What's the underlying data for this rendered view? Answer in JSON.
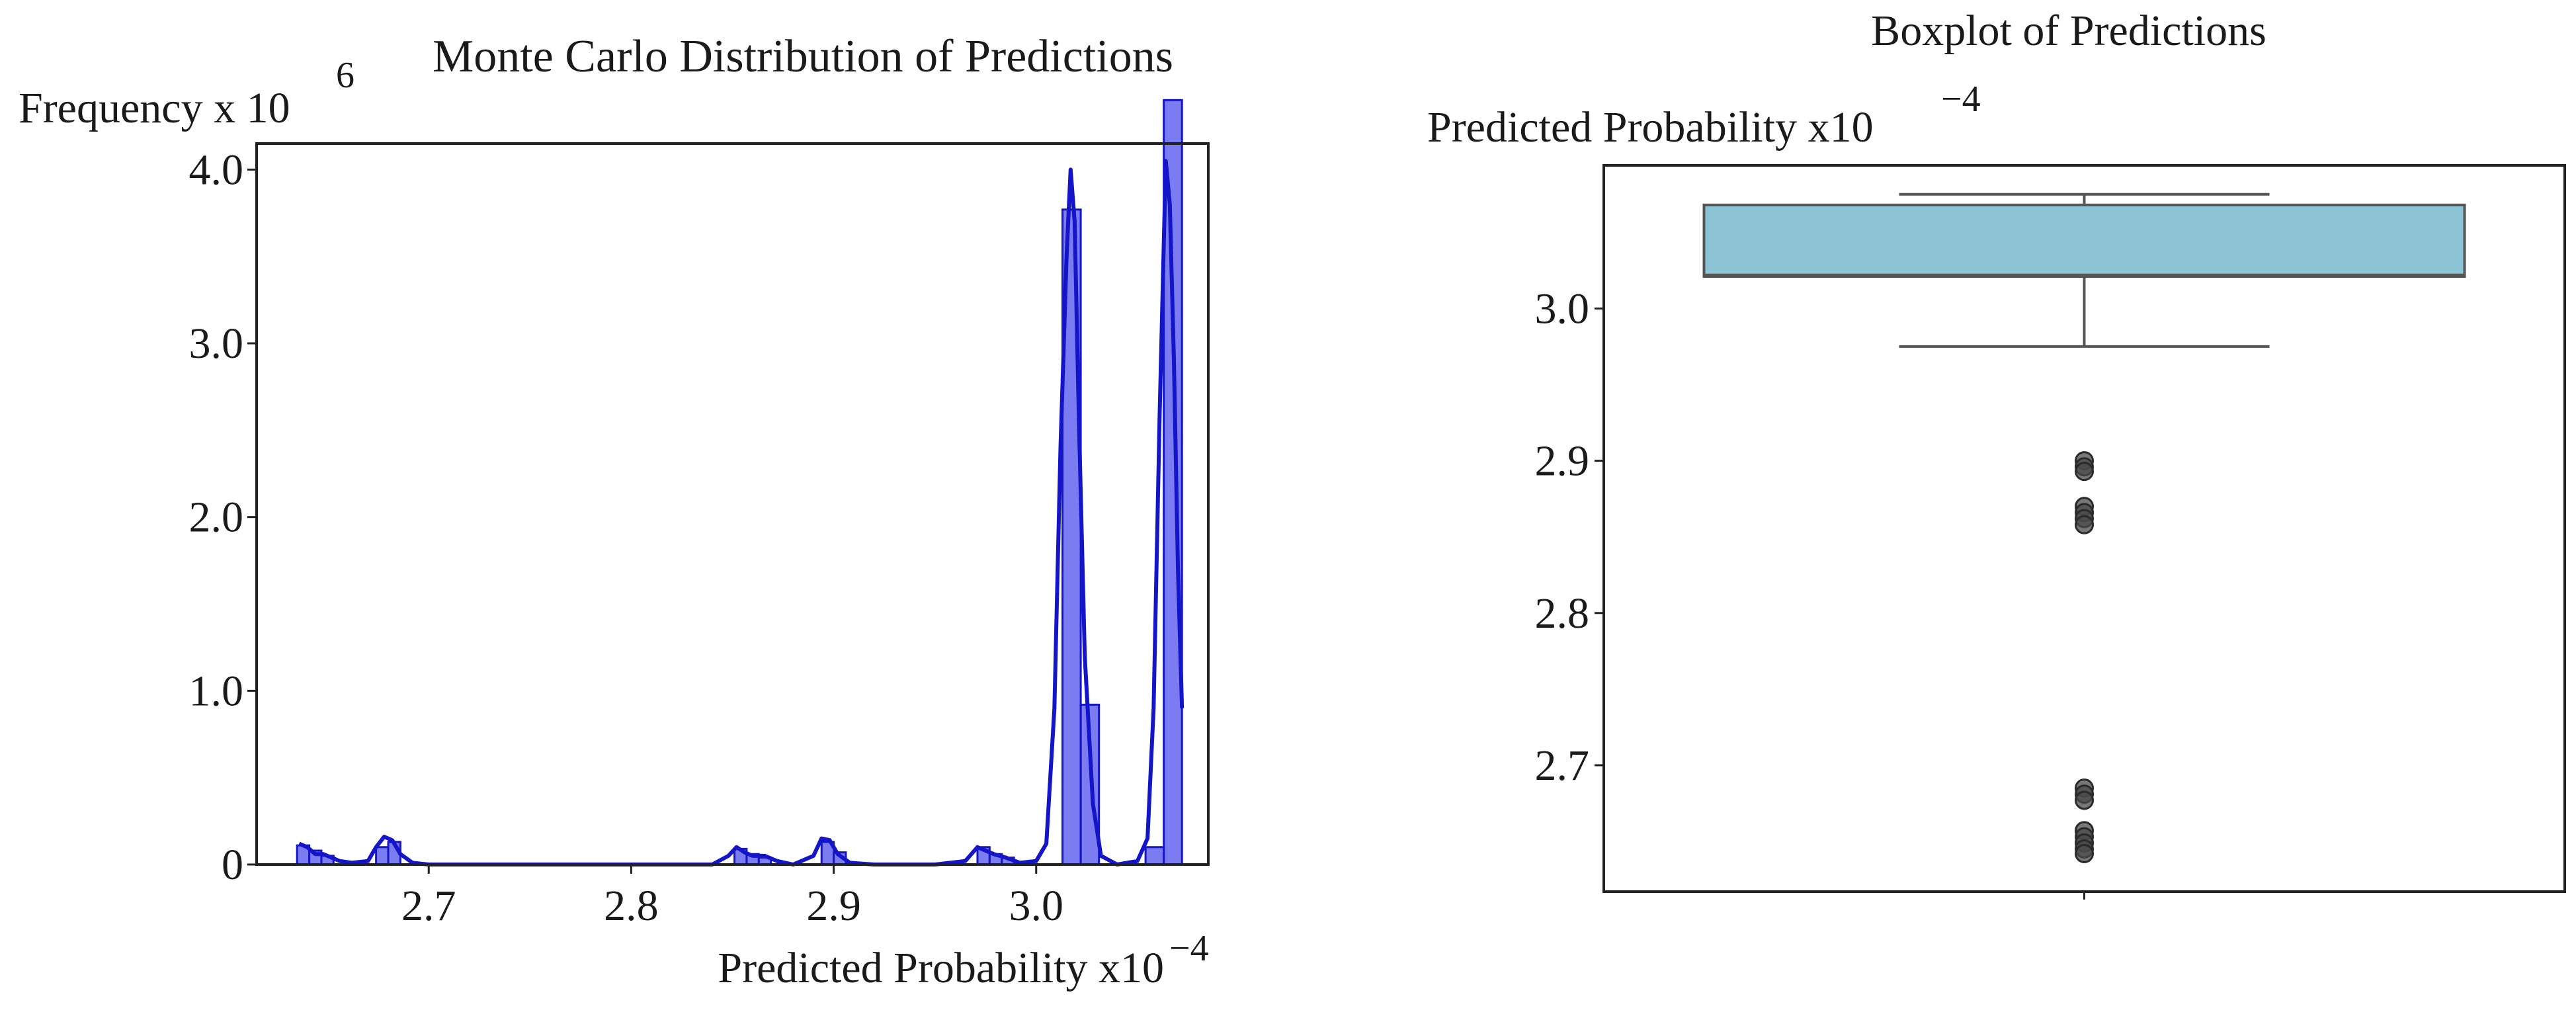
{
  "chart_data": [
    {
      "type": "bar",
      "title": "Monte Carlo Distribution of Predictions",
      "xlabel": "Predicted Probability x10",
      "xlabel_exponent": "−4",
      "ylabel": "Frequency x 10",
      "ylabel_exponent": "6",
      "xlim": [
        2.615,
        3.085
      ],
      "ylim": [
        0,
        4.15
      ],
      "x_ticks": [
        2.7,
        2.8,
        2.9,
        3.0
      ],
      "x_tick_labels": [
        "2.7",
        "2.8",
        "2.9",
        "3.0"
      ],
      "y_ticks": [
        0,
        1.0,
        2.0,
        3.0,
        4.0
      ],
      "y_tick_labels": [
        "0",
        "1.0",
        "2.0",
        "3.0",
        "4.0"
      ],
      "grid": false,
      "bar_color": "#6464f0",
      "line_color": "#1414c8",
      "bars": [
        {
          "x": 2.635,
          "width": 0.006,
          "value": 0.11
        },
        {
          "x": 2.641,
          "width": 0.006,
          "value": 0.08
        },
        {
          "x": 2.647,
          "width": 0.006,
          "value": 0.05
        },
        {
          "x": 2.674,
          "width": 0.006,
          "value": 0.1
        },
        {
          "x": 2.68,
          "width": 0.006,
          "value": 0.13
        },
        {
          "x": 2.851,
          "width": 0.006,
          "value": 0.09
        },
        {
          "x": 2.857,
          "width": 0.006,
          "value": 0.06
        },
        {
          "x": 2.863,
          "width": 0.006,
          "value": 0.04
        },
        {
          "x": 2.894,
          "width": 0.006,
          "value": 0.13
        },
        {
          "x": 2.9,
          "width": 0.006,
          "value": 0.07
        },
        {
          "x": 2.971,
          "width": 0.006,
          "value": 0.1
        },
        {
          "x": 2.977,
          "width": 0.006,
          "value": 0.06
        },
        {
          "x": 2.983,
          "width": 0.006,
          "value": 0.04
        },
        {
          "x": 3.013,
          "width": 0.009,
          "value": 3.77
        },
        {
          "x": 3.022,
          "width": 0.009,
          "value": 0.92
        },
        {
          "x": 3.054,
          "width": 0.009,
          "value": 0.1
        },
        {
          "x": 3.063,
          "width": 0.009,
          "value": 4.4
        }
      ],
      "kde": {
        "x": [
          2.636,
          2.64,
          2.644,
          2.648,
          2.652,
          2.656,
          2.662,
          2.67,
          2.674,
          2.678,
          2.682,
          2.686,
          2.692,
          2.7,
          2.75,
          2.8,
          2.84,
          2.848,
          2.852,
          2.856,
          2.86,
          2.866,
          2.872,
          2.88,
          2.89,
          2.894,
          2.898,
          2.902,
          2.908,
          2.92,
          2.95,
          2.965,
          2.971,
          2.975,
          2.979,
          2.985,
          2.992,
          3.0,
          3.005,
          3.009,
          3.012,
          3.015,
          3.017,
          3.019,
          3.021,
          3.024,
          3.028,
          3.032,
          3.04,
          3.05,
          3.055,
          3.058,
          3.061,
          3.064,
          3.066,
          3.068,
          3.07,
          3.072
        ],
        "y": [
          0.12,
          0.1,
          0.06,
          0.06,
          0.04,
          0.02,
          0.01,
          0.02,
          0.1,
          0.16,
          0.14,
          0.06,
          0.01,
          0.0,
          0.0,
          0.0,
          0.0,
          0.05,
          0.1,
          0.07,
          0.05,
          0.05,
          0.02,
          0.0,
          0.05,
          0.15,
          0.14,
          0.06,
          0.01,
          0.0,
          0.0,
          0.02,
          0.1,
          0.08,
          0.06,
          0.04,
          0.01,
          0.02,
          0.12,
          0.9,
          2.4,
          3.5,
          4.0,
          3.7,
          2.6,
          1.2,
          0.35,
          0.05,
          0.0,
          0.02,
          0.15,
          0.9,
          2.6,
          4.05,
          3.8,
          2.9,
          1.7,
          0.9
        ]
      }
    },
    {
      "type": "boxplot",
      "title": "Boxplot of Predictions",
      "ylabel": "Predicted Probability x10",
      "ylabel_exponent": "−4",
      "ylim": [
        2.617,
        3.094
      ],
      "y_ticks": [
        2.7,
        2.8,
        2.9,
        3.0
      ],
      "y_tick_labels": [
        "2.7",
        "2.8",
        "2.9",
        "3.0"
      ],
      "grid": false,
      "box_color": "#8cc4d6",
      "box": {
        "whisker_low": 2.975,
        "q1": 3.021,
        "median": 3.022,
        "q3": 3.068,
        "whisker_high": 3.075
      },
      "outliers": [
        2.9,
        2.896,
        2.893,
        2.87,
        2.866,
        2.862,
        2.858,
        2.685,
        2.681,
        2.677,
        2.657,
        2.653,
        2.649,
        2.645,
        2.642
      ]
    }
  ]
}
